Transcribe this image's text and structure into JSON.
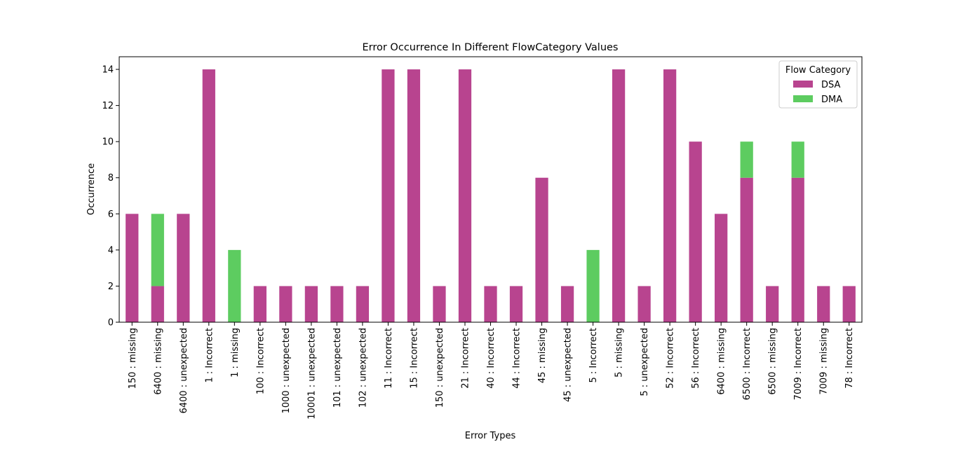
{
  "chart_data": {
    "type": "bar",
    "stacked": true,
    "title": "Error Occurrence In Different FlowCategory Values",
    "xlabel": "Error Types",
    "ylabel": "Occurrence",
    "ylim": [
      0,
      14.7
    ],
    "yticks": [
      0,
      2,
      4,
      6,
      8,
      10,
      12,
      14
    ],
    "grid": false,
    "legend": {
      "title": "Flow Category",
      "placement": "top-right"
    },
    "categories": [
      "150 : missing",
      "6400 : missing",
      "6400 : unexpected",
      "1 : Incorrect",
      "1 : missing",
      "100 : Incorrect",
      "1000 : unexpected",
      "10001 : unexpected",
      "101 : unexpected",
      "102 : unexpected",
      "11 : Incorrect",
      "15 : Incorrect",
      "150 : unexpected",
      "21 : Incorrect",
      "40 : Incorrect",
      "44 : Incorrect",
      "45 : missing",
      "45 : unexpected",
      "5 : Incorrect",
      "5 : missing",
      "5 : unexpected",
      "52 : Incorrect",
      "56 : Incorrect",
      "6400 : missing",
      "6500 : Incorrect",
      "6500 : missing",
      "7009 : Incorrect",
      "7009 : missing",
      "78 : Incorrect"
    ],
    "series": [
      {
        "name": "DSA",
        "color": "#b8448f",
        "values": [
          6,
          2,
          6,
          14,
          0,
          2,
          2,
          2,
          2,
          2,
          14,
          14,
          2,
          14,
          2,
          2,
          8,
          2,
          0,
          14,
          2,
          14,
          10,
          6,
          8,
          2,
          8,
          2,
          2
        ]
      },
      {
        "name": "DMA",
        "color": "#5dcc60",
        "values": [
          0,
          4,
          0,
          0,
          4,
          0,
          0,
          0,
          0,
          0,
          0,
          0,
          0,
          0,
          0,
          0,
          0,
          0,
          4,
          0,
          0,
          0,
          0,
          0,
          2,
          0,
          2,
          0,
          0
        ]
      }
    ]
  }
}
